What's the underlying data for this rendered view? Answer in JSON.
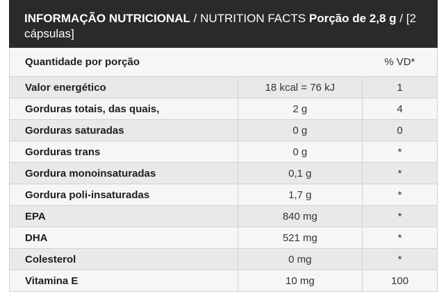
{
  "header": {
    "title_bold": "INFORMAÇÃO NUTRICIONAL",
    "title_regular": " / NUTRITION FACTS ",
    "serving_bold": "Porção de 2,8 g",
    "serving_regular": " / [2 cápsulas]"
  },
  "table": {
    "header": {
      "label": "Quantidade por porção",
      "amount": "",
      "dv": "% VD*"
    },
    "rows": [
      {
        "label": "Valor energético",
        "amount": "18 kcal = 76 kJ",
        "dv": "1"
      },
      {
        "label": "Gorduras totais, das quais,",
        "amount": "2 g",
        "dv": "4"
      },
      {
        "label": "Gorduras saturadas",
        "amount": "0 g",
        "dv": "0"
      },
      {
        "label": "Gorduras trans",
        "amount": "0 g",
        "dv": "*"
      },
      {
        "label": "Gordura monoinsaturadas",
        "amount": "0,1 g",
        "dv": "*"
      },
      {
        "label": "Gordura poli-insaturadas",
        "amount": "1,7 g",
        "dv": "*"
      },
      {
        "label": "EPA",
        "amount": "840 mg",
        "dv": "*"
      },
      {
        "label": "DHA",
        "amount": "521 mg",
        "dv": "*"
      },
      {
        "label": "Colesterol",
        "amount": "0 mg",
        "dv": "*"
      },
      {
        "label": "Vitamina E",
        "amount": "10 mg",
        "dv": "100"
      }
    ]
  },
  "colors": {
    "header_bg": "#2a2a2a",
    "row_odd": "#e9e9e9",
    "row_even": "#f6f6f6",
    "border": "#d2d2d2"
  }
}
